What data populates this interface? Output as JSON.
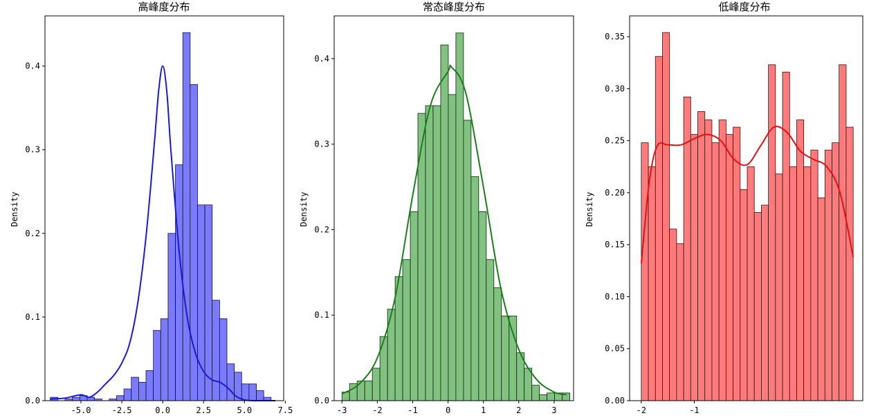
{
  "chart_data": [
    {
      "type": "bar",
      "title": "高峰度分布",
      "xlabel": "",
      "ylabel": "Density",
      "xlim": [
        -7.2,
        7.4
      ],
      "ylim": [
        0,
        0.46
      ],
      "xticks": [
        -5.0,
        -2.5,
        0.0,
        2.5,
        5.0,
        7.5
      ],
      "xtick_labels": [
        "-5.0",
        "-2.5",
        "0.0",
        "2.5",
        "5.0",
        "7.5"
      ],
      "yticks": [
        0.0,
        0.1,
        0.2,
        0.3,
        0.4
      ],
      "ytick_labels": [
        "0.0",
        "0.1",
        "0.2",
        "0.3",
        "0.4"
      ],
      "bin_start": -6.87,
      "bin_width": 0.45,
      "values": [
        0.004,
        0.0,
        0.002,
        0.004,
        0.006,
        0.004,
        0.002,
        0.0,
        0.002,
        0.006,
        0.014,
        0.028,
        0.022,
        0.036,
        0.084,
        0.098,
        0.2,
        0.282,
        0.44,
        0.378,
        0.234,
        0.234,
        0.12,
        0.098,
        0.044,
        0.034,
        0.02,
        0.02,
        0.012,
        0.004,
        0.0,
        0.0,
        0.0,
        0.0,
        0.0,
        0.0,
        0.0,
        0.0,
        0.0,
        0.0,
        0.0,
        0.0,
        0.0
      ],
      "kde": {
        "x": [
          -6.9,
          -6.0,
          -5.0,
          -4.5,
          -4.0,
          -3.5,
          -3.0,
          -2.5,
          -2.0,
          -1.5,
          -1.0,
          -0.5,
          -0.25,
          0.0,
          0.25,
          0.5,
          1.0,
          1.5,
          2.0,
          2.5,
          3.0,
          3.5,
          4.0,
          4.5,
          5.0,
          5.5,
          6.0,
          6.9
        ],
        "y": [
          0.002,
          0.003,
          0.007,
          0.004,
          0.01,
          0.02,
          0.03,
          0.045,
          0.07,
          0.12,
          0.2,
          0.31,
          0.37,
          0.4,
          0.37,
          0.3,
          0.18,
          0.1,
          0.057,
          0.035,
          0.025,
          0.022,
          0.015,
          0.005,
          0.001,
          0.0,
          0.0,
          0.0
        ]
      },
      "colors": {
        "bar": "#7b7bff",
        "edge": "#111133",
        "kde": "#1a1ad6"
      }
    },
    {
      "type": "bar",
      "title": "常态峰度分布",
      "xlabel": "",
      "ylabel": "Density",
      "xlim": [
        -3.22,
        3.55
      ],
      "ylim": [
        0,
        0.45
      ],
      "xticks": [
        -3,
        -2,
        -1,
        0,
        1,
        2,
        3
      ],
      "xtick_labels": [
        "-3",
        "-2",
        "-1",
        "0",
        "1",
        "2",
        "3"
      ],
      "yticks": [
        0.0,
        0.1,
        0.2,
        0.3,
        0.4
      ],
      "ytick_labels": [
        "0.0",
        "0.1",
        "0.2",
        "0.3",
        "0.4"
      ],
      "bin_start": -3.0,
      "bin_width": 0.2148,
      "values": [
        0.01,
        0.02,
        0.023,
        0.023,
        0.038,
        0.075,
        0.107,
        0.145,
        0.165,
        0.221,
        0.336,
        0.345,
        0.345,
        0.416,
        0.358,
        0.43,
        0.328,
        0.262,
        0.221,
        0.165,
        0.132,
        0.099,
        0.099,
        0.056,
        0.038,
        0.018,
        0.007,
        0.009,
        0.009,
        0.009
      ],
      "kde": {
        "x": [
          -3.0,
          -2.5,
          -2.0,
          -1.5,
          -1.0,
          -0.5,
          0.0,
          0.1,
          0.5,
          1.0,
          1.5,
          2.0,
          2.5,
          3.0,
          3.35
        ],
        "y": [
          0.008,
          0.02,
          0.05,
          0.12,
          0.24,
          0.345,
          0.385,
          0.39,
          0.36,
          0.25,
          0.13,
          0.06,
          0.025,
          0.01,
          0.007
        ]
      },
      "colors": {
        "bar": "#82c281",
        "edge": "#112211",
        "kde": "#1c7d1c"
      }
    },
    {
      "type": "bar",
      "title": "低峰度分布",
      "xlabel": "",
      "ylabel": "Density",
      "xlim": [
        -2.22,
        2.18
      ],
      "ylim": [
        0,
        0.37
      ],
      "xticks": [
        -2,
        -1
      ],
      "xtick_labels": [
        "-2",
        "-1"
      ],
      "yticks": [
        0.0,
        0.05,
        0.1,
        0.15,
        0.2,
        0.25,
        0.3,
        0.35
      ],
      "ytick_labels": [
        "0.00",
        "0.05",
        "0.10",
        "0.15",
        "0.20",
        "0.25",
        "0.30",
        "0.35"
      ],
      "bin_start": -2.0,
      "bin_width": 0.1333,
      "values": [
        0.248,
        0.225,
        0.331,
        0.354,
        0.165,
        0.151,
        0.292,
        0.256,
        0.278,
        0.27,
        0.248,
        0.27,
        0.256,
        0.263,
        0.203,
        0.225,
        0.181,
        0.188,
        0.323,
        0.218,
        0.316,
        0.225,
        0.27,
        0.225,
        0.241,
        0.195,
        0.241,
        0.248,
        0.323,
        0.263
      ],
      "kde": {
        "x": [
          -2.0,
          -1.85,
          -1.7,
          -1.5,
          -1.25,
          -1.0,
          -0.75,
          -0.5,
          -0.25,
          0.0,
          0.25,
          0.5,
          0.75,
          1.0,
          1.25,
          1.5,
          1.75,
          2.0
        ],
        "y": [
          0.132,
          0.21,
          0.245,
          0.246,
          0.246,
          0.252,
          0.256,
          0.25,
          0.232,
          0.227,
          0.245,
          0.263,
          0.258,
          0.24,
          0.232,
          0.225,
          0.2,
          0.138
        ]
      },
      "colors": {
        "bar": "#ff7b7b",
        "edge": "#331111",
        "kde": "#e61010"
      }
    }
  ]
}
